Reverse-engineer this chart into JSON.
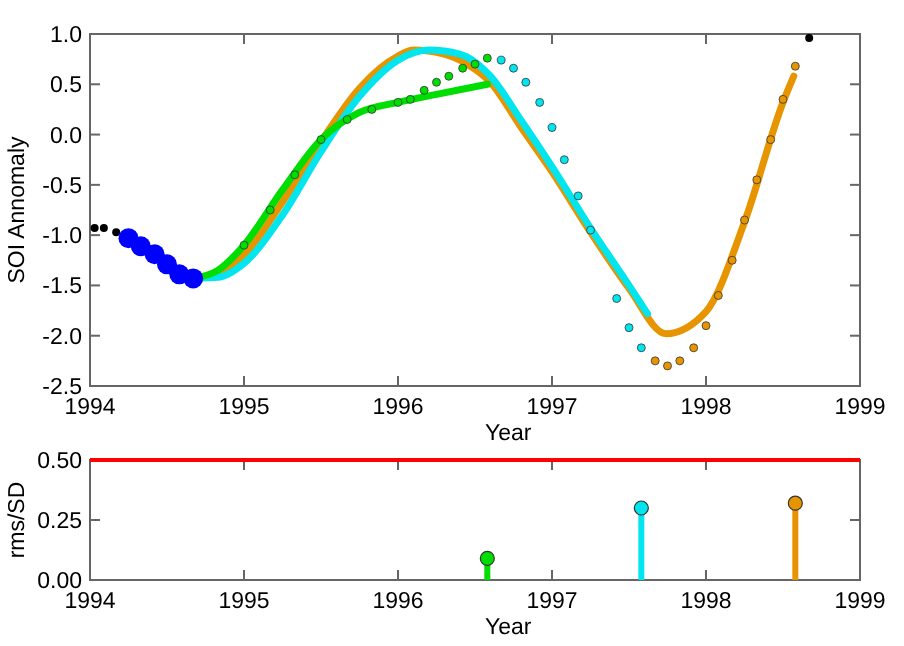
{
  "chart_data": [
    {
      "type": "line",
      "xlabel": "Year",
      "ylabel": "SOI Annomaly",
      "xlim": [
        1994,
        1999
      ],
      "xticks": [
        1994,
        1995,
        1996,
        1997,
        1998,
        1999
      ],
      "ylim": [
        -2.5,
        1.0
      ],
      "yticks": [
        {
          "value": -2.5,
          "label": "-2.5"
        },
        {
          "value": -2,
          "label": "-2.0"
        },
        {
          "value": -1.5,
          "label": "-1.5"
        },
        {
          "value": -1,
          "label": "-1.0"
        },
        {
          "value": -0.5,
          "label": "-0.5"
        },
        {
          "value": 0,
          "label": "0.0"
        },
        {
          "value": 0.5,
          "label": "0.5"
        },
        {
          "value": 1,
          "label": "1.0"
        }
      ],
      "grid": false,
      "series": [
        {
          "color": "#e69500",
          "marker": "none",
          "x": [
            1994.67,
            1994.83,
            1995.0,
            1995.25,
            1995.5,
            1995.75,
            1996.0,
            1996.1,
            1996.3,
            1996.45,
            1996.6,
            1996.8,
            1997.0,
            1997.25,
            1997.5,
            1997.74,
            1998.0,
            1998.25,
            1998.5,
            1998.57
          ],
          "values": [
            -1.43,
            -1.4,
            -1.2,
            -0.67,
            -0.07,
            0.46,
            0.78,
            0.84,
            0.8,
            0.7,
            0.52,
            0.07,
            -0.37,
            -0.97,
            -1.53,
            -1.98,
            -1.76,
            -0.87,
            0.32,
            0.58
          ]
        },
        {
          "color": "#00e5ee",
          "marker": "none",
          "x": [
            1994.67,
            1994.83,
            1995.0,
            1995.25,
            1995.5,
            1995.75,
            1996.0,
            1996.2,
            1996.4,
            1996.6,
            1996.8,
            1997.0,
            1997.25,
            1997.5,
            1997.62
          ],
          "values": [
            -1.43,
            -1.42,
            -1.28,
            -0.8,
            -0.17,
            0.38,
            0.74,
            0.84,
            0.8,
            0.58,
            0.14,
            -0.32,
            -0.93,
            -1.5,
            -1.78
          ]
        },
        {
          "color": "#00dd00",
          "marker": "none",
          "x": [
            1994.67,
            1994.83,
            1995.0,
            1995.25,
            1995.5,
            1995.75,
            1996.0,
            1996.25,
            1996.58
          ],
          "values": [
            -1.43,
            -1.35,
            -1.1,
            -0.55,
            -0.05,
            0.22,
            0.32,
            0.4,
            0.5
          ]
        },
        {
          "type": "scatter",
          "color": "#000000",
          "marker": "circle",
          "x": [
            1994.03,
            1994.09,
            1994.17,
            1998.67
          ],
          "values": [
            -0.93,
            -0.93,
            -0.97,
            0.96
          ]
        },
        {
          "type": "bubble",
          "color": "#0000ff",
          "marker": "circle",
          "x": [
            1994.25,
            1994.33,
            1994.42,
            1994.5,
            1994.58,
            1994.67
          ],
          "values": [
            -1.03,
            -1.11,
            -1.19,
            -1.29,
            -1.39,
            -1.43
          ],
          "sizes": [
            1,
            1,
            1,
            1,
            1,
            1
          ]
        },
        {
          "type": "scatter",
          "color": "#00dd00",
          "marker": "circle",
          "x": [
            1995.0,
            1995.17,
            1995.33,
            1995.5,
            1995.67,
            1995.83,
            1996.0,
            1996.08,
            1996.17,
            1996.25,
            1996.33,
            1996.42,
            1996.5,
            1996.58
          ],
          "values": [
            -1.1,
            -0.75,
            -0.4,
            -0.05,
            0.15,
            0.25,
            0.32,
            0.35,
            0.44,
            0.52,
            0.58,
            0.66,
            0.7,
            0.76
          ]
        },
        {
          "type": "scatter",
          "color": "#00e5ee",
          "marker": "circle",
          "x": [
            1996.67,
            1996.75,
            1996.83,
            1996.92,
            1997.0,
            1997.08,
            1997.17,
            1997.25,
            1997.42,
            1997.5,
            1997.58
          ],
          "values": [
            0.74,
            0.66,
            0.52,
            0.32,
            0.07,
            -0.25,
            -0.61,
            -0.95,
            -1.63,
            -1.92,
            -2.12
          ]
        },
        {
          "type": "scatter",
          "color": "#e69500",
          "marker": "circle",
          "x": [
            1997.67,
            1997.75,
            1997.83,
            1997.92,
            1998.0,
            1998.08,
            1998.17,
            1998.25,
            1998.33,
            1998.42,
            1998.5,
            1998.58
          ],
          "values": [
            -2.25,
            -2.3,
            -2.25,
            -2.12,
            -1.9,
            -1.6,
            -1.25,
            -0.85,
            -0.45,
            -0.05,
            0.35,
            0.68
          ]
        }
      ]
    },
    {
      "type": "lollipop",
      "xlabel": "Year",
      "ylabel": "rms/SD",
      "xlim": [
        1994,
        1999
      ],
      "xticks": [
        1994,
        1995,
        1996,
        1997,
        1998,
        1999
      ],
      "ylim": [
        0,
        0.5
      ],
      "yticks": [
        {
          "value": 0,
          "label": "0.00"
        },
        {
          "value": 0.25,
          "label": "0.25"
        },
        {
          "value": 0.5,
          "label": "0.50"
        }
      ],
      "grid": false,
      "x": [
        1996.58,
        1997.58,
        1998.58
      ],
      "values": [
        0.09,
        0.3,
        0.32
      ],
      "colors": [
        "#00dd00",
        "#00e5ee",
        "#e69500"
      ],
      "ref_lines": [
        {
          "axis": "y",
          "value": 0.5,
          "color": "#ff0000"
        }
      ]
    }
  ]
}
